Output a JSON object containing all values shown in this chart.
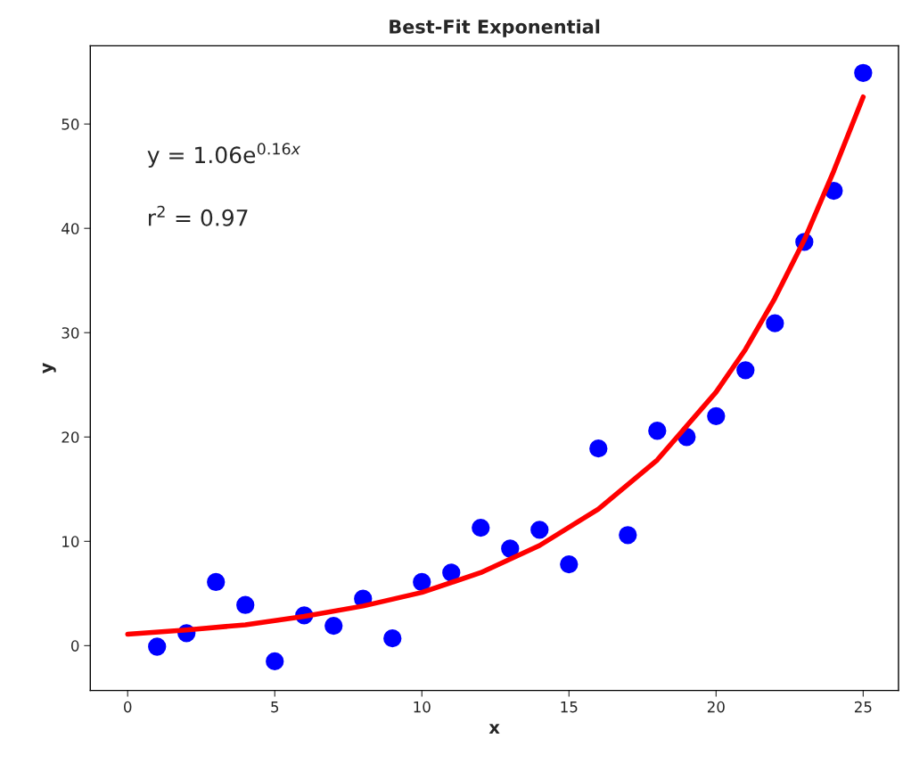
{
  "chart_data": {
    "type": "scatter",
    "title": "Best-Fit Exponential",
    "xlabel": "x",
    "ylabel": "y",
    "xlim": [
      -1.27,
      26.2
    ],
    "ylim": [
      -4.3,
      57.5
    ],
    "xticks": [
      0,
      5,
      10,
      15,
      20,
      25
    ],
    "yticks": [
      0,
      10,
      20,
      30,
      40,
      50
    ],
    "grid": false,
    "legend": false,
    "series": [
      {
        "marker": "circle",
        "color": "#0000ff",
        "x": [
          1,
          2,
          3,
          4,
          5,
          6,
          7,
          8,
          9,
          10,
          11,
          12,
          13,
          14,
          15,
          16,
          17,
          18,
          19,
          20,
          21,
          22,
          23,
          24,
          25
        ],
        "values": [
          -0.1,
          1.2,
          6.1,
          3.9,
          -1.5,
          2.9,
          1.9,
          4.5,
          0.7,
          6.1,
          7.0,
          11.3,
          9.3,
          11.1,
          7.8,
          18.9,
          10.6,
          20.6,
          20.0,
          22.0,
          26.4,
          30.9,
          38.7,
          43.6,
          54.9
        ]
      },
      {
        "type": "line",
        "color": "#ff0000",
        "line_style": "solid",
        "x": [
          0,
          2,
          4,
          6,
          8,
          10,
          12,
          14,
          16,
          18,
          20,
          21,
          22,
          23,
          24,
          25
        ],
        "values": [
          1.1,
          1.5,
          2.0,
          2.8,
          3.8,
          5.1,
          7.0,
          9.6,
          13.1,
          17.8,
          24.3,
          28.4,
          33.3,
          38.9,
          45.5,
          52.6
        ]
      }
    ],
    "annotations": [
      "y = 1.06e$^{0.16x}$",
      "r$^{2}$ = 0.97"
    ]
  }
}
